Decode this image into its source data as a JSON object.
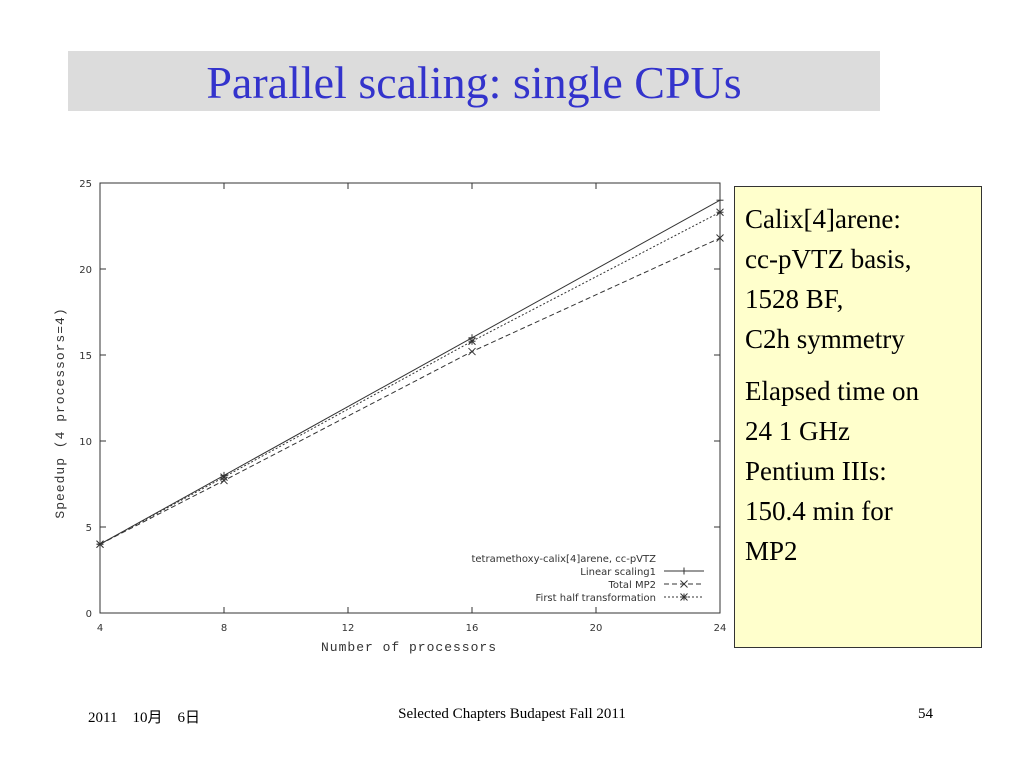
{
  "slide": {
    "title": "Parallel scaling: single CPUs",
    "note_lines_1": [
      "Calix[4]arene:",
      "cc-pVTZ basis,",
      "1528 BF,",
      "C2h symmetry"
    ],
    "note_lines_2": [
      "Elapsed time on",
      "24 1 GHz",
      "Pentium IIIs:",
      "150.4 min for",
      "MP2"
    ],
    "footer_date": "2011　10月　6日",
    "footer_center": "Selected Chapters Budapest Fall 2011",
    "footer_page": "54"
  },
  "chart_data": {
    "type": "line",
    "xlabel": "Number of processors",
    "ylabel": "Speedup (4 processors=4)",
    "xlim": [
      4,
      24
    ],
    "ylim": [
      0,
      25
    ],
    "xticks": [
      4,
      8,
      12,
      16,
      20,
      24
    ],
    "yticks": [
      0,
      5,
      10,
      15,
      20,
      25
    ],
    "legend_title": "tetramethoxy-calix[4]arene, cc-pVTZ",
    "legend_position": "bottom-right",
    "grid": false,
    "series": [
      {
        "name": "Linear scaling1",
        "style": "solid",
        "marker": "+",
        "x": [
          4,
          8,
          16,
          24
        ],
        "y": [
          4,
          8,
          16,
          24
        ]
      },
      {
        "name": "Total MP2",
        "style": "dashed",
        "marker": "x",
        "x": [
          4,
          8,
          16,
          24
        ],
        "y": [
          4,
          7.7,
          15.2,
          21.8
        ]
      },
      {
        "name": "First half transformation",
        "style": "dotted",
        "marker": "*",
        "x": [
          4,
          8,
          16,
          24
        ],
        "y": [
          4,
          7.9,
          15.8,
          23.3
        ]
      }
    ]
  }
}
